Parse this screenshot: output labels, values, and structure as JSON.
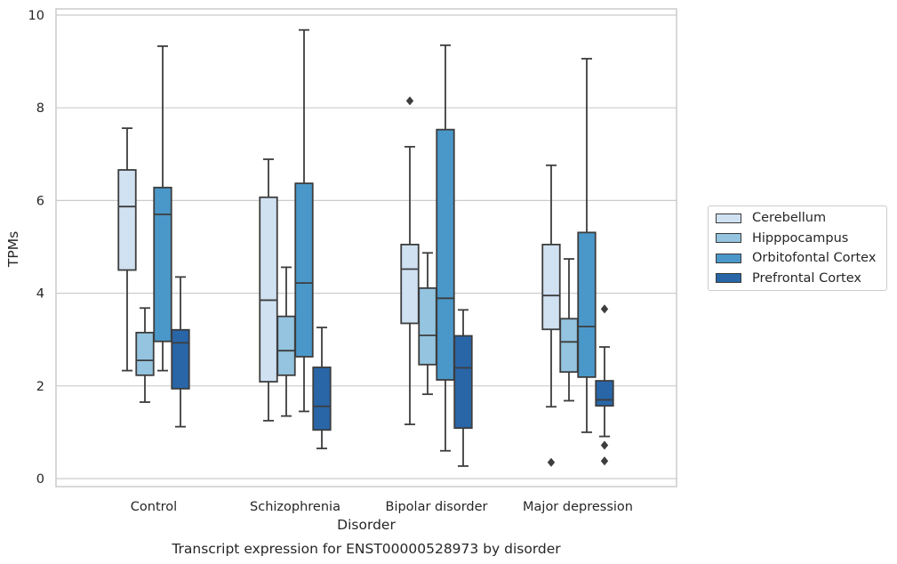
{
  "chart_data": {
    "type": "box",
    "title": "Transcript expression for ENST00000528973 by disorder",
    "xlabel": "Disorder",
    "ylabel": "TPMs",
    "ylim": [
      -0.2,
      10.2
    ],
    "yticks": [
      0,
      2,
      4,
      6,
      8,
      10
    ],
    "grid": true,
    "legend_position": "right",
    "categories": [
      "Control",
      "Schizophrenia",
      "Bipolar disorder",
      "Major depression"
    ],
    "series": [
      {
        "name": "Cerebellum",
        "color": "#d0e1f2",
        "boxes": [
          {
            "whislo": 2.33,
            "q1": 4.5,
            "med": 5.87,
            "q3": 6.66,
            "whishi": 7.56,
            "fliers": []
          },
          {
            "whislo": 1.25,
            "q1": 2.09,
            "med": 3.85,
            "q3": 6.07,
            "whishi": 6.89,
            "fliers": []
          },
          {
            "whislo": 1.17,
            "q1": 3.35,
            "med": 4.52,
            "q3": 5.05,
            "whishi": 7.16,
            "fliers": [
              8.15
            ]
          },
          {
            "whislo": 1.55,
            "q1": 3.22,
            "med": 3.95,
            "q3": 5.05,
            "whishi": 6.76,
            "fliers": [
              0.35
            ]
          }
        ]
      },
      {
        "name": "Hipppocampus",
        "color": "#94c4df",
        "boxes": [
          {
            "whislo": 1.65,
            "q1": 2.23,
            "med": 2.55,
            "q3": 3.15,
            "whishi": 3.68,
            "fliers": []
          },
          {
            "whislo": 1.35,
            "q1": 2.23,
            "med": 2.76,
            "q3": 3.5,
            "whishi": 4.56,
            "fliers": []
          },
          {
            "whislo": 1.82,
            "q1": 2.46,
            "med": 3.09,
            "q3": 4.11,
            "whishi": 4.87,
            "fliers": []
          },
          {
            "whislo": 1.68,
            "q1": 2.3,
            "med": 2.95,
            "q3": 3.45,
            "whishi": 4.74,
            "fliers": []
          }
        ]
      },
      {
        "name": "Orbitofontal Cortex",
        "color": "#4a98c9",
        "boxes": [
          {
            "whislo": 2.33,
            "q1": 2.96,
            "med": 5.7,
            "q3": 6.28,
            "whishi": 9.33,
            "fliers": []
          },
          {
            "whislo": 1.45,
            "q1": 2.63,
            "med": 4.22,
            "q3": 6.37,
            "whishi": 9.68,
            "fliers": []
          },
          {
            "whislo": 0.6,
            "q1": 2.13,
            "med": 3.89,
            "q3": 7.53,
            "whishi": 9.35,
            "fliers": []
          },
          {
            "whislo": 1.0,
            "q1": 2.19,
            "med": 3.28,
            "q3": 5.31,
            "whishi": 9.06,
            "fliers": []
          }
        ]
      },
      {
        "name": "Prefrontal Cortex",
        "color": "#2866a8",
        "boxes": [
          {
            "whislo": 1.12,
            "q1": 1.94,
            "med": 2.93,
            "q3": 3.21,
            "whishi": 4.35,
            "fliers": []
          },
          {
            "whislo": 0.65,
            "q1": 1.05,
            "med": 1.56,
            "q3": 2.4,
            "whishi": 3.26,
            "fliers": []
          },
          {
            "whislo": 0.27,
            "q1": 1.09,
            "med": 2.39,
            "q3": 3.08,
            "whishi": 3.64,
            "fliers": []
          },
          {
            "whislo": 0.91,
            "q1": 1.57,
            "med": 1.7,
            "q3": 2.11,
            "whishi": 2.84,
            "fliers": [
              3.66,
              0.72,
              0.38
            ]
          }
        ]
      }
    ]
  }
}
